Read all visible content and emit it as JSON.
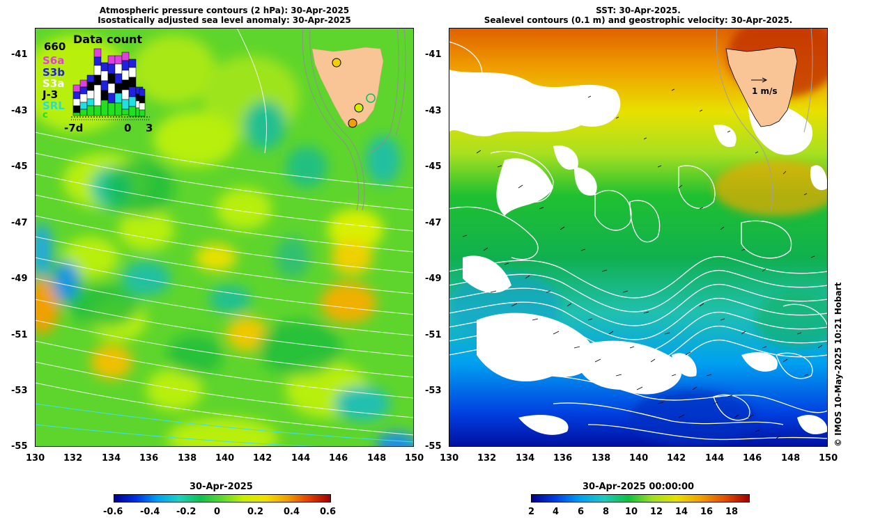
{
  "left_panel": {
    "title_line1": "Atmospheric pressure contours (2 hPa): 30-Apr-2025",
    "title_line2": "Isostatically adjusted sea level anomaly: 30-Apr-2025",
    "inset": {
      "title": "Data count",
      "max_count": "660",
      "missions": [
        {
          "label": "S6a",
          "color": "#e040e0"
        },
        {
          "label": "S3b",
          "color": "#2020e0"
        },
        {
          "label": "S3a",
          "color": "#ffffff"
        },
        {
          "label": "J-3",
          "color": "#000000"
        },
        {
          "label": "SRL",
          "color": "#20e0e0"
        },
        {
          "label": "c",
          "color": "#20e020"
        }
      ],
      "x_labels": [
        "-7d",
        "0",
        "3"
      ]
    },
    "colorbar": {
      "date_label": "30-Apr-2025",
      "ticks": [
        "-0.6",
        "-0.4",
        "-0.2",
        "0",
        "0.2",
        "0.4",
        "0.6"
      ]
    }
  },
  "right_panel": {
    "title_line1": "SST: 30-Apr-2025.",
    "title_line2": "Sealevel contours (0.1 m) and geostrophic velocity: 30-Apr-2025.",
    "vector_scale_label": "1 m/s",
    "colorbar": {
      "date_label": "30-Apr-2025 00:00:00",
      "ticks": [
        "2",
        "4",
        "6",
        "8",
        "10",
        "12",
        "14",
        "16",
        "18"
      ]
    }
  },
  "axes": {
    "y_ticks": [
      "-41",
      "-43",
      "-45",
      "-47",
      "-49",
      "-51",
      "-53",
      "-55"
    ],
    "x_ticks": [
      "130",
      "132",
      "134",
      "136",
      "138",
      "140",
      "142",
      "144",
      "146",
      "148",
      "150"
    ]
  },
  "credit": "© IMOS 10-May-2025 10:21 Hobart",
  "colors": {
    "land": "#f9c496",
    "sla_colormap": [
      "#00008a",
      "#0030e0",
      "#00a0f0",
      "#20d0c0",
      "#10c050",
      "#60d830",
      "#c8f000",
      "#f0e000",
      "#f0a000",
      "#e04000",
      "#a00000"
    ],
    "sst_colormap": [
      "#00008a",
      "#0040e0",
      "#00a0f0",
      "#20c8c0",
      "#10c040",
      "#a0e020",
      "#e8e000",
      "#f0a000",
      "#e05000",
      "#a00000"
    ]
  }
}
